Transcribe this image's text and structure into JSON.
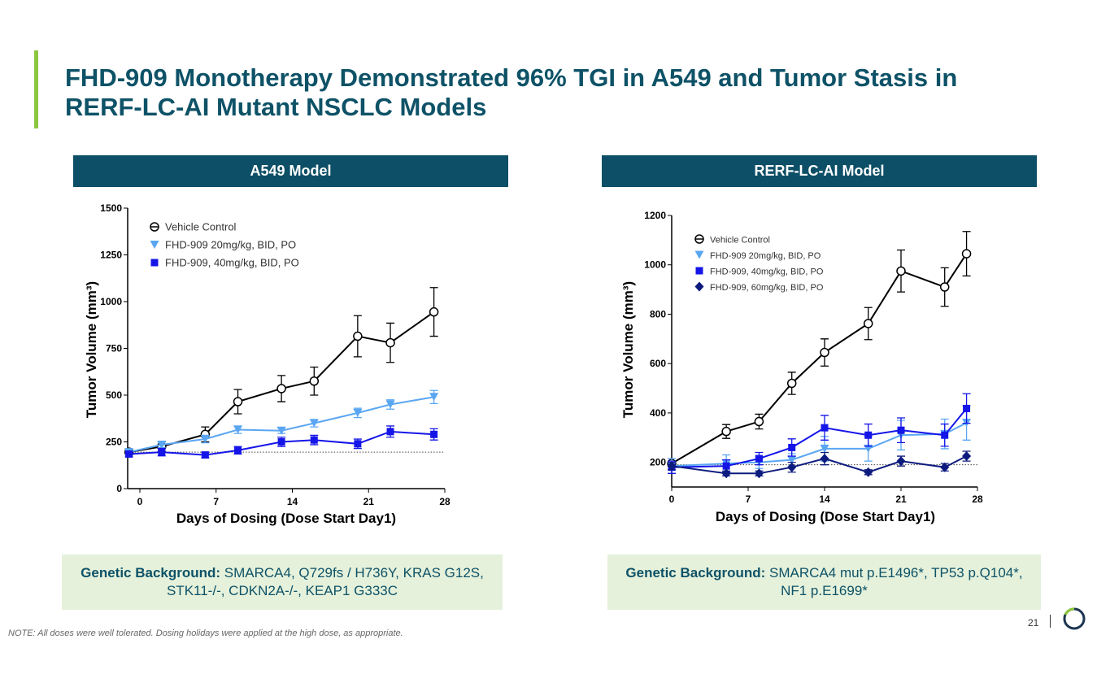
{
  "title": "FHD-909 Monotherapy Demonstrated 96% TGI in A549 and Tumor Stasis in RERF-LC-AI Mutant NSCLC Models",
  "panels": [
    {
      "header": "A549 Model",
      "genetic_label": "Genetic Background:",
      "genetic_text": " SMARCA4, Q729fs / H736Y, KRAS G12S, STK11-/-, CDKN2A-/-, KEAP1 G333C"
    },
    {
      "header": "RERF-LC-AI Model",
      "genetic_label": "Genetic Background:",
      "genetic_text": " SMARCA4 mut p.E1496*, TP53 p.Q104*, NF1 p.E1699*"
    }
  ],
  "note": "NOTE: All doses were well tolerated. Dosing holidays were applied at the high dose, as appropriate.",
  "page_number": "21",
  "colors": {
    "vehicle": "#000000",
    "dose20": "#5aa6f2",
    "dose40": "#1515e8",
    "dose60": "#0d1a7e",
    "header": "#0d4f66",
    "accent": "#8dc63f"
  },
  "chart_data": [
    {
      "type": "line",
      "title": "A549 Model",
      "xlabel": "Days of Dosing (Dose Start Day1)",
      "ylabel": "Tumor Volume (mm³)",
      "xlim": [
        -1,
        28
      ],
      "ylim": [
        0,
        1500
      ],
      "xticks": [
        0,
        7,
        14,
        21,
        28
      ],
      "yticks": [
        0,
        250,
        500,
        750,
        1000,
        1250,
        1500
      ],
      "baseline": 195,
      "legend": "top-left",
      "x": [
        -1,
        2,
        6,
        9,
        13,
        16,
        20,
        23,
        27
      ],
      "series": [
        {
          "name": "Vehicle Control",
          "marker": "circle",
          "color": "#000000",
          "values": [
            195,
            225,
            290,
            465,
            535,
            575,
            815,
            780,
            945
          ],
          "errors": [
            15,
            25,
            40,
            65,
            70,
            75,
            110,
            105,
            130
          ]
        },
        {
          "name": "FHD-909 20mg/kg, BID, PO",
          "marker": "triangle-down",
          "color": "#5aa6f2",
          "values": [
            195,
            235,
            265,
            315,
            310,
            350,
            405,
            450,
            490
          ],
          "errors": [
            10,
            15,
            20,
            20,
            15,
            20,
            25,
            25,
            35
          ]
        },
        {
          "name": "FHD-909, 40mg/kg, BID, PO",
          "marker": "square",
          "color": "#1515e8",
          "values": [
            185,
            195,
            180,
            205,
            250,
            260,
            240,
            305,
            290
          ],
          "errors": [
            15,
            20,
            15,
            20,
            25,
            25,
            25,
            30,
            30
          ]
        }
      ]
    },
    {
      "type": "line",
      "title": "RERF-LC-AI Model",
      "xlabel": "Days of Dosing (Dose Start Day1)",
      "ylabel": "Tumor Volume (mm³)",
      "xlim": [
        0,
        28
      ],
      "ylim": [
        100,
        1200
      ],
      "xticks": [
        0,
        7,
        14,
        21,
        28
      ],
      "yticks": [
        200,
        400,
        600,
        800,
        1000,
        1200
      ],
      "baseline": 190,
      "legend": "top-left",
      "x": [
        0,
        5,
        8,
        11,
        14,
        18,
        21,
        25,
        27
      ],
      "series": [
        {
          "name": "Vehicle Control",
          "marker": "circle",
          "color": "#000000",
          "values": [
            195,
            325,
            365,
            520,
            645,
            762,
            975,
            910,
            1045
          ],
          "errors": [
            10,
            28,
            30,
            45,
            55,
            65,
            85,
            78,
            90
          ]
        },
        {
          "name": "FHD-909 20mg/kg, BID, PO",
          "marker": "triangle-down",
          "color": "#5aa6f2",
          "values": [
            185,
            195,
            200,
            210,
            255,
            255,
            310,
            315,
            360
          ],
          "errors": [
            30,
            35,
            25,
            25,
            50,
            50,
            60,
            60,
            70
          ]
        },
        {
          "name": "FHD-909, 40mg/kg, BID, PO",
          "marker": "square",
          "color": "#1515e8",
          "values": [
            180,
            185,
            215,
            260,
            340,
            310,
            330,
            310,
            418
          ],
          "errors": [
            25,
            25,
            25,
            35,
            50,
            45,
            50,
            45,
            60
          ]
        },
        {
          "name": "FHD-909, 60mg/kg, BID, PO",
          "marker": "diamond",
          "color": "#0d1a7e",
          "values": [
            185,
            155,
            155,
            180,
            215,
            160,
            205,
            180,
            225
          ],
          "errors": [
            15,
            10,
            10,
            20,
            25,
            10,
            20,
            15,
            20
          ]
        }
      ]
    }
  ]
}
